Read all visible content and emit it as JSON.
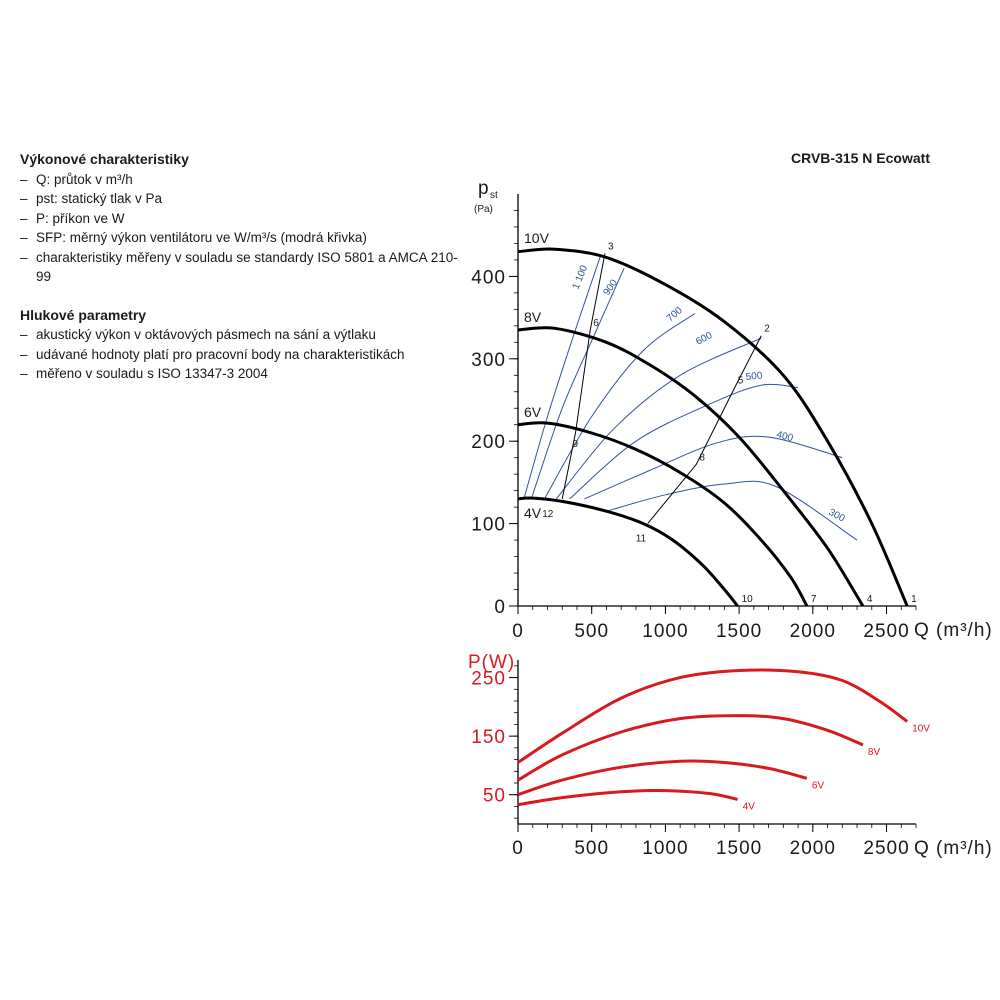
{
  "description": {
    "performance_title": "Výkonové charakteristiky",
    "performance_items": [
      "Q: průtok v m³/h",
      "pst: statický tlak v Pa",
      "P: příkon ve W",
      "SFP: měrný výkon ventilátoru ve W/m³/s (modrá křivka)",
      "charakteristiky měřeny v souladu se standardy ISO 5801 a AMCA 210-99"
    ],
    "noise_title": "Hlukové parametry",
    "noise_items": [
      "akustický výkon v oktávových pásmech na sání a výtlaku",
      "udávané hodnoty platí pro pracovní body na charakteristikách",
      "měřeno v souladu s ISO 13347-3 2004"
    ]
  },
  "chart_data": [
    {
      "type": "line",
      "title": "CRVB-315 N Ecowatt",
      "ylabel_main": "p",
      "ylabel_sub": "st",
      "ylabel_unit": "(Pa)",
      "xlabel": "Q (m³/h)",
      "xlim": [
        0,
        2700
      ],
      "ylim": [
        0,
        500
      ],
      "xticks": [
        "0",
        "500",
        "1000",
        "1500",
        "2000",
        "2500"
      ],
      "yticks": [
        "0",
        "100",
        "200",
        "300",
        "400"
      ],
      "colors": {
        "fan": "#000000",
        "sfp": "#2f5597",
        "system": "#000000"
      },
      "series": [
        {
          "name": "10V",
          "x": [
            0,
            250,
            600,
            1000,
            1400,
            1800,
            2100,
            2400,
            2640
          ],
          "y": [
            430,
            433,
            423,
            390,
            345,
            280,
            200,
            100,
            0
          ]
        },
        {
          "name": "8V",
          "x": [
            0,
            250,
            600,
            900,
            1200,
            1500,
            1800,
            2100,
            2340
          ],
          "y": [
            335,
            337,
            320,
            292,
            255,
            205,
            140,
            70,
            0
          ]
        },
        {
          "name": "6V",
          "x": [
            0,
            200,
            500,
            800,
            1100,
            1400,
            1650,
            1850,
            1960
          ],
          "y": [
            220,
            222,
            210,
            190,
            162,
            125,
            80,
            35,
            0
          ]
        },
        {
          "name": "4V",
          "x": [
            0,
            100,
            300,
            600,
            850,
            1050,
            1250,
            1400,
            1490
          ],
          "y": [
            130,
            131,
            127,
            115,
            100,
            80,
            50,
            20,
            0
          ]
        }
      ],
      "sfp_curves": [
        {
          "label": "1 100",
          "x": [
            40,
            200,
            380,
            560
          ],
          "y": [
            130,
            230,
            330,
            425
          ]
        },
        {
          "label": "900",
          "x": [
            90,
            300,
            520,
            720
          ],
          "y": [
            130,
            240,
            330,
            410
          ]
        },
        {
          "label": "700",
          "x": [
            180,
            500,
            850,
            1200
          ],
          "y": [
            130,
            230,
            310,
            355
          ]
        },
        {
          "label": "600",
          "x": [
            260,
            650,
            1100,
            1650
          ],
          "y": [
            130,
            215,
            280,
            325
          ]
        },
        {
          "label": "500",
          "x": [
            350,
            800,
            1300,
            1650,
            1900
          ],
          "y": [
            130,
            200,
            245,
            268,
            265
          ]
        },
        {
          "label": "400",
          "x": [
            450,
            900,
            1350,
            1700,
            2200
          ],
          "y": [
            130,
            165,
            198,
            205,
            180
          ]
        },
        {
          "label": "300",
          "x": [
            600,
            1000,
            1400,
            1750,
            2300
          ],
          "y": [
            115,
            135,
            148,
            145,
            80
          ]
        }
      ],
      "system_curves": [
        {
          "points": [
            "3",
            "6",
            "9",
            "12"
          ],
          "x": [
            590,
            490,
            390,
            300
          ],
          "y": [
            428,
            335,
            210,
            130
          ]
        },
        {
          "points": [
            "2",
            "5",
            "8",
            "11"
          ],
          "x": [
            1650,
            1470,
            1210,
            880
          ],
          "y": [
            328,
            265,
            172,
            100
          ]
        }
      ],
      "operating_points": [
        {
          "label": "1",
          "x": 2640,
          "y": 0
        },
        {
          "label": "2",
          "x": 1650,
          "y": 328
        },
        {
          "label": "3",
          "x": 590,
          "y": 428
        },
        {
          "label": "4",
          "x": 2340,
          "y": 0
        },
        {
          "label": "5",
          "x": 1470,
          "y": 265
        },
        {
          "label": "6",
          "x": 490,
          "y": 335
        },
        {
          "label": "7",
          "x": 1960,
          "y": 0
        },
        {
          "label": "8",
          "x": 1210,
          "y": 172
        },
        {
          "label": "9",
          "x": 390,
          "y": 210
        },
        {
          "label": "10",
          "x": 1490,
          "y": 0
        },
        {
          "label": "11",
          "x": 880,
          "y": 100
        },
        {
          "label": "12",
          "x": 300,
          "y": 130
        }
      ]
    },
    {
      "type": "line",
      "ylabel": "P(W)",
      "xlabel": "Q (m³/h)",
      "xlim": [
        0,
        2700
      ],
      "ylim": [
        0,
        280
      ],
      "xticks": [
        "0",
        "500",
        "1000",
        "1500",
        "2000",
        "2500"
      ],
      "yticks": [
        "50",
        "150",
        "250"
      ],
      "colors": {
        "power": "#d71920"
      },
      "series": [
        {
          "name": "10V",
          "x": [
            0,
            300,
            700,
            1100,
            1500,
            1900,
            2200,
            2450,
            2640
          ],
          "y": [
            105,
            155,
            215,
            250,
            262,
            260,
            245,
            210,
            175
          ]
        },
        {
          "name": "8V",
          "x": [
            0,
            300,
            700,
            1100,
            1500,
            1800,
            2100,
            2340
          ],
          "y": [
            75,
            118,
            157,
            180,
            185,
            180,
            160,
            135
          ]
        },
        {
          "name": "6V",
          "x": [
            0,
            300,
            700,
            1100,
            1400,
            1700,
            1960
          ],
          "y": [
            50,
            75,
            97,
            107,
            105,
            95,
            78
          ]
        },
        {
          "name": "4V",
          "x": [
            0,
            300,
            700,
            1000,
            1300,
            1490
          ],
          "y": [
            33,
            45,
            55,
            57,
            52,
            42
          ]
        }
      ]
    }
  ]
}
